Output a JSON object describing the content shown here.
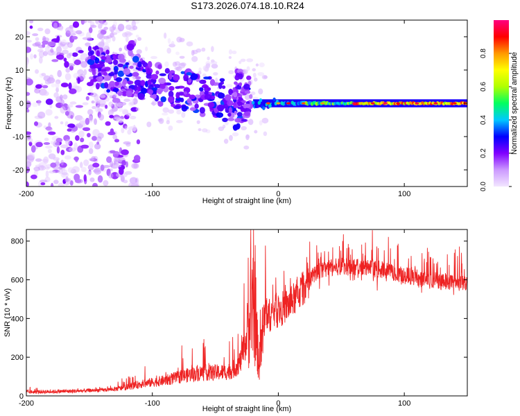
{
  "title": "S173.2026.074.18.10.R24",
  "chart_data": [
    {
      "type": "heatmap",
      "title": "S173.2026.074.18.10.R24",
      "xlabel": "Height of straight line (km)",
      "ylabel": "Frequency (Hz)",
      "xlim": [
        -200,
        150
      ],
      "ylim": [
        -25,
        25
      ],
      "x_ticks": [
        "-200",
        "-100",
        "0",
        "100"
      ],
      "y_ticks": [
        "20",
        "10",
        "0",
        "-10",
        "-20"
      ],
      "colorbar": {
        "label": "Normalized spectral amplitude",
        "range": [
          0,
          1
        ],
        "ticks": [
          "0.0",
          "0.2",
          "0.4",
          "0.6",
          "0.8"
        ],
        "colors": [
          "#f2e6ff",
          "#cc99ff",
          "#8000ff",
          "#0000ff",
          "#00c8ff",
          "#00ff60",
          "#b0ff00",
          "#ffff00",
          "#ff9900",
          "#ff0000",
          "#ff0080"
        ]
      },
      "annotations": "Scattered weak signal below -130 km; signal descending from about +12 Hz at -120 km to 0 Hz near -20 km; strong narrow carrier line at 0 Hz from -20 km to 150 km"
    },
    {
      "type": "line",
      "xlabel": "Height of straight line (km)",
      "ylabel": "SNR (10 * v/v)",
      "xlim": [
        -200,
        150
      ],
      "ylim": [
        0,
        860
      ],
      "x_ticks": [
        "-200",
        "-100",
        "0",
        "100"
      ],
      "y_ticks": [
        "0",
        "200",
        "400",
        "600",
        "800"
      ],
      "line_color": "#ee2222",
      "series": [
        {
          "name": "SNR",
          "x": [
            -200,
            -180,
            -160,
            -150,
            -140,
            -130,
            -120,
            -110,
            -100,
            -90,
            -80,
            -70,
            -60,
            -50,
            -40,
            -35,
            -30,
            -25,
            -20,
            -17,
            -15,
            -12,
            -10,
            -5,
            0,
            5,
            10,
            15,
            20,
            25,
            30,
            40,
            50,
            60,
            70,
            80,
            90,
            100,
            110,
            120,
            130,
            140,
            150
          ],
          "values": [
            20,
            22,
            25,
            28,
            30,
            35,
            45,
            60,
            70,
            80,
            95,
            110,
            120,
            120,
            125,
            140,
            180,
            300,
            450,
            280,
            170,
            330,
            400,
            430,
            440,
            460,
            480,
            520,
            560,
            600,
            640,
            660,
            670,
            665,
            660,
            655,
            640,
            625,
            610,
            600,
            595,
            590,
            585
          ]
        }
      ]
    }
  ]
}
